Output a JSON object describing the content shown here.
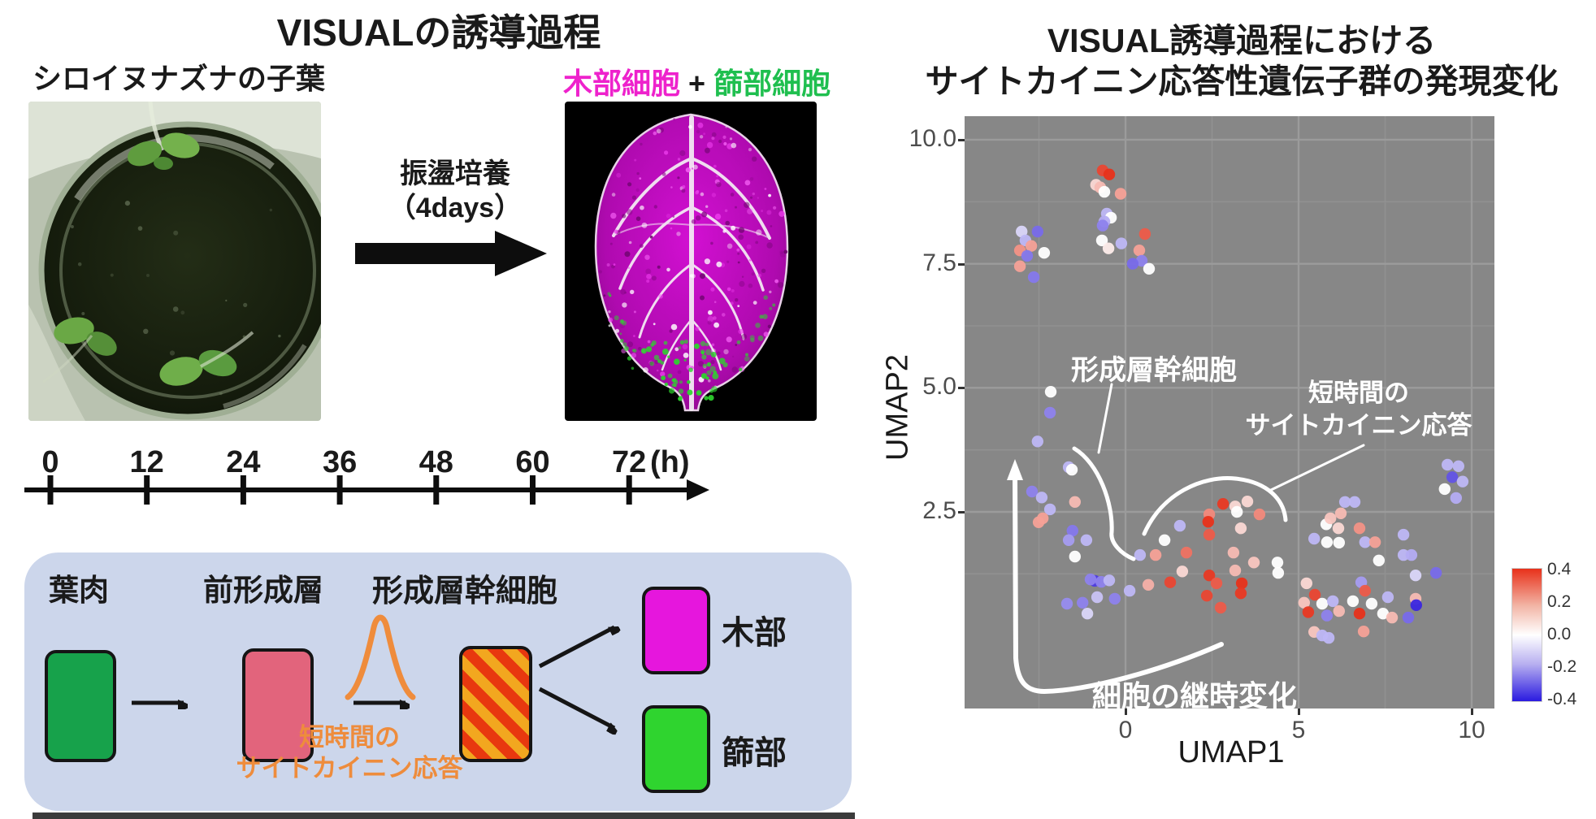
{
  "left_figure": {
    "title": "VISUALの誘導過程",
    "photo_label": "シロイヌナズナの子葉",
    "incubation_line1": "振盪培養",
    "incubation_line2": "（4days）",
    "result_label": {
      "xylem": "木部細胞",
      "plus": "+",
      "phloem": "篩部細胞"
    },
    "timeline": {
      "ticks": [
        "0",
        "12",
        "24",
        "36",
        "48",
        "60",
        "72"
      ],
      "unit": "(h)"
    },
    "pathway": {
      "mesophyll_label": "葉肉",
      "procambium_label": "前形成層",
      "stem_cell_label": "形成層幹細胞",
      "xylem_label": "木部",
      "phloem_label": "篩部",
      "cytokinin_note_line1": "短時間の",
      "cytokinin_note_line2": "サイトカイニン応答"
    },
    "colors": {
      "xylem_text": "#ee22cc",
      "phloem_text": "#1fbf4f",
      "accent_orange": "#ee8c3c",
      "box_mesophyll": "#17a24b",
      "box_procambium": "#e2647c",
      "box_xylem": "#e616dd",
      "box_phloem": "#2fd42f",
      "stripe_yellow": "#f2a71f",
      "stripe_red": "#e8380f",
      "panel_blue": "#ccd6eb"
    }
  },
  "right_figure": {
    "title_line1": "VISUAL誘導過程における",
    "title_line2": "サイトカイニン応答性遺伝子群の発現変化",
    "annotations": {
      "stem_cell": "形成層幹細胞",
      "cytokinin_line1": "短時間の",
      "cytokinin_line2": "サイトカイニン応答",
      "trajectory": "細胞の継時変化"
    },
    "panel_color": "#878787"
  },
  "chart_data": {
    "type": "scatter",
    "xlabel": "UMAP1",
    "ylabel": "UMAP2",
    "x_ticks": [
      0,
      5,
      10
    ],
    "y_ticks": [
      2.5,
      5.0,
      7.5,
      10.0
    ],
    "x_minor": [
      -2.5,
      2.5,
      7.5
    ],
    "y_minor": [
      1.25,
      3.75,
      6.25,
      8.75
    ],
    "xlim": [
      -4.65,
      10.66
    ],
    "ylim": [
      -1.45,
      10.47
    ],
    "grid": true,
    "legend_position": "right",
    "colorbar": {
      "min": -0.4,
      "max": 0.4,
      "ticks": [
        0.4,
        0.2,
        0.0,
        -0.2,
        -0.4
      ],
      "color_high": "#e8311a",
      "color_mid": "#ffffff",
      "color_low": "#2a1ae0"
    },
    "points": [
      [
        -0.66,
        9.38,
        0.35
      ],
      [
        -0.47,
        9.3,
        0.4
      ],
      [
        -0.85,
        9.09,
        0.05
      ],
      [
        -0.73,
        9.04,
        0.1
      ],
      [
        -0.61,
        8.95,
        0.0
      ],
      [
        -0.14,
        8.91,
        0.15
      ],
      [
        -0.54,
        8.51,
        -0.1
      ],
      [
        -0.42,
        8.43,
        0.0
      ],
      [
        -0.61,
        8.35,
        -0.12
      ],
      [
        -0.66,
        8.27,
        -0.2
      ],
      [
        -0.68,
        7.97,
        0.0
      ],
      [
        -0.12,
        7.91,
        -0.1
      ],
      [
        -0.49,
        7.81,
        0.02
      ],
      [
        0.56,
        8.1,
        0.3
      ],
      [
        0.4,
        7.77,
        0.15
      ],
      [
        0.47,
        7.56,
        -0.2
      ],
      [
        0.21,
        7.5,
        -0.25
      ],
      [
        0.68,
        7.4,
        0.0
      ],
      [
        -3.0,
        8.15,
        -0.05
      ],
      [
        -2.54,
        8.15,
        -0.25
      ],
      [
        -2.89,
        7.97,
        -0.1
      ],
      [
        -2.72,
        7.86,
        0.15
      ],
      [
        -3.05,
        7.77,
        0.18
      ],
      [
        -2.84,
        7.66,
        -0.22
      ],
      [
        -2.35,
        7.72,
        0.0
      ],
      [
        -3.05,
        7.45,
        0.15
      ],
      [
        -2.65,
        7.23,
        -0.22
      ],
      [
        -2.16,
        4.92,
        0.0
      ],
      [
        -2.18,
        4.5,
        -0.2
      ],
      [
        -2.54,
        3.92,
        -0.1
      ],
      [
        -1.64,
        3.4,
        -0.1
      ],
      [
        -1.55,
        3.35,
        0.0
      ],
      [
        -2.7,
        2.91,
        -0.2
      ],
      [
        -2.42,
        2.79,
        -0.1
      ],
      [
        -1.46,
        2.7,
        0.1
      ],
      [
        -2.18,
        2.55,
        -0.1
      ],
      [
        -2.39,
        2.37,
        0.15
      ],
      [
        -2.51,
        2.29,
        0.15
      ],
      [
        -1.53,
        2.12,
        -0.22
      ],
      [
        -1.64,
        1.93,
        -0.15
      ],
      [
        -1.13,
        1.93,
        -0.1
      ],
      [
        -1.46,
        1.6,
        0.0
      ],
      [
        -0.89,
        1.11,
        -0.35
      ],
      [
        -1.01,
        1.14,
        -0.2
      ],
      [
        -0.7,
        1.09,
        -0.2
      ],
      [
        -0.47,
        1.12,
        -0.1
      ],
      [
        -0.31,
        0.75,
        -0.2
      ],
      [
        0.12,
        0.91,
        -0.1
      ],
      [
        -1.24,
        0.67,
        -0.2
      ],
      [
        -1.69,
        0.65,
        -0.18
      ],
      [
        -0.82,
        0.78,
        -0.08
      ],
      [
        -1.1,
        0.45,
        -0.05
      ],
      [
        0.42,
        1.63,
        -0.1
      ],
      [
        0.87,
        1.63,
        0.15
      ],
      [
        1.13,
        1.93,
        0.0
      ],
      [
        1.57,
        2.22,
        -0.1
      ],
      [
        1.76,
        1.68,
        0.25
      ],
      [
        1.64,
        1.3,
        0.05
      ],
      [
        0.66,
        1.03,
        0.12
      ],
      [
        1.29,
        1.08,
        0.35
      ],
      [
        2.42,
        2.45,
        0.2
      ],
      [
        2.39,
        2.3,
        0.4
      ],
      [
        2.42,
        2.04,
        0.3
      ],
      [
        2.82,
        2.66,
        0.38
      ],
      [
        3.17,
        2.61,
        0.05
      ],
      [
        3.52,
        2.71,
        0.05
      ],
      [
        3.22,
        2.5,
        0.0
      ],
      [
        3.87,
        2.45,
        0.2
      ],
      [
        3.33,
        2.17,
        0.05
      ],
      [
        3.12,
        1.68,
        0.1
      ],
      [
        3.17,
        1.32,
        0.1
      ],
      [
        2.42,
        1.22,
        0.38
      ],
      [
        2.63,
        1.06,
        0.3
      ],
      [
        3.36,
        1.06,
        0.4
      ],
      [
        3.71,
        1.48,
        0.08
      ],
      [
        4.39,
        1.48,
        0.0
      ],
      [
        4.41,
        1.27,
        0.0
      ],
      [
        5.23,
        1.06,
        0.05
      ],
      [
        5.45,
        1.96,
        -0.1
      ],
      [
        5.8,
        2.25,
        0.0
      ],
      [
        5.92,
        2.37,
        0.08
      ],
      [
        3.33,
        0.86,
        0.38
      ],
      [
        2.35,
        0.81,
        0.35
      ],
      [
        2.75,
        0.57,
        0.3
      ],
      [
        6.34,
        2.7,
        -0.1
      ],
      [
        6.62,
        2.7,
        -0.1
      ],
      [
        6.22,
        2.47,
        0.1
      ],
      [
        6.15,
        2.17,
        0.05
      ],
      [
        6.76,
        2.17,
        0.18
      ],
      [
        5.82,
        1.89,
        0.0
      ],
      [
        6.17,
        1.88,
        0.0
      ],
      [
        6.92,
        1.89,
        -0.1
      ],
      [
        7.21,
        1.89,
        0.15
      ],
      [
        8.03,
        2.04,
        -0.1
      ],
      [
        7.32,
        1.52,
        0.0
      ],
      [
        8.03,
        1.63,
        -0.1
      ],
      [
        8.26,
        1.63,
        -0.12
      ],
      [
        8.38,
        1.22,
        -0.05
      ],
      [
        8.97,
        1.27,
        -0.25
      ],
      [
        6.81,
        1.08,
        -0.15
      ],
      [
        6.92,
        0.91,
        0.3
      ],
      [
        6.57,
        0.7,
        0.0
      ],
      [
        7.58,
        0.78,
        -0.1
      ],
      [
        7.11,
        0.65,
        0.0
      ],
      [
        7.44,
        0.45,
        0.0
      ],
      [
        6.76,
        0.45,
        0.4
      ],
      [
        7.7,
        0.37,
        0.1
      ],
      [
        8.38,
        0.75,
        0.1
      ],
      [
        8.4,
        0.62,
        -0.4
      ],
      [
        8.17,
        0.37,
        -0.25
      ],
      [
        6.88,
        0.09,
        0.15
      ],
      [
        5.16,
        0.67,
        0.08
      ],
      [
        5.47,
        0.83,
        0.35
      ],
      [
        5.28,
        0.48,
        0.38
      ],
      [
        5.68,
        0.65,
        0.0
      ],
      [
        5.99,
        0.7,
        -0.1
      ],
      [
        6.17,
        0.5,
        0.1
      ],
      [
        5.82,
        0.41,
        -0.2
      ],
      [
        5.45,
        0.08,
        0.08
      ],
      [
        5.68,
        0.01,
        -0.1
      ],
      [
        5.87,
        -0.04,
        -0.1
      ],
      [
        9.44,
        3.2,
        -0.3
      ],
      [
        9.74,
        3.11,
        -0.1
      ],
      [
        9.22,
        2.96,
        0.0
      ],
      [
        9.55,
        2.78,
        -0.12
      ],
      [
        9.3,
        3.45,
        -0.1
      ],
      [
        9.62,
        3.42,
        -0.1
      ]
    ]
  }
}
